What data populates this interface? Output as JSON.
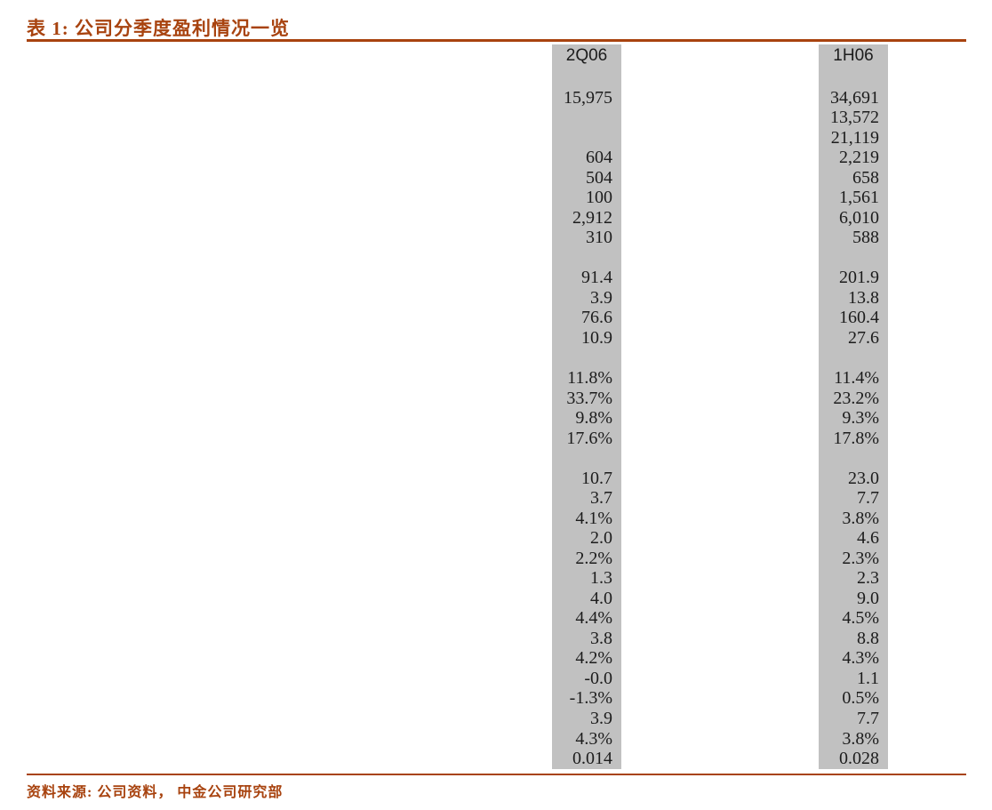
{
  "title": {
    "label": "表 1: 公司分季度盈利情况一览"
  },
  "table": {
    "columns": [
      {
        "header": "2Q06",
        "values": [
          "",
          "15,975",
          "",
          "",
          "604",
          "504",
          "100",
          "2,912",
          "310",
          "",
          "91.4",
          "3.9",
          "76.6",
          "10.9",
          "",
          "11.8%",
          "33.7%",
          "9.8%",
          "17.6%",
          "",
          "10.7",
          "3.7",
          "4.1%",
          "2.0",
          "2.2%",
          "1.3",
          "4.0",
          "4.4%",
          "3.8",
          "4.2%",
          "-0.0",
          "-1.3%",
          "3.9",
          "4.3%",
          "0.014"
        ]
      },
      {
        "header": "1H06",
        "values": [
          "",
          "34,691",
          "13,572",
          "21,119",
          "2,219",
          "658",
          "1,561",
          "6,010",
          "588",
          "",
          "201.9",
          "13.8",
          "160.4",
          "27.6",
          "",
          "11.4%",
          "23.2%",
          "9.3%",
          "17.8%",
          "",
          "23.0",
          "7.7",
          "3.8%",
          "4.6",
          "2.3%",
          "2.3",
          "9.0",
          "4.5%",
          "8.8",
          "4.3%",
          "1.1",
          "0.5%",
          "7.7",
          "3.8%",
          "0.028"
        ]
      }
    ]
  },
  "footer": {
    "source": "资料来源: 公司资料， 中金公司研究部"
  },
  "colors": {
    "accent": "#A8430F",
    "column_bg": "#C1C1C1",
    "number_text": "#1C1C1C",
    "page_bg": "#FFFFFF"
  }
}
